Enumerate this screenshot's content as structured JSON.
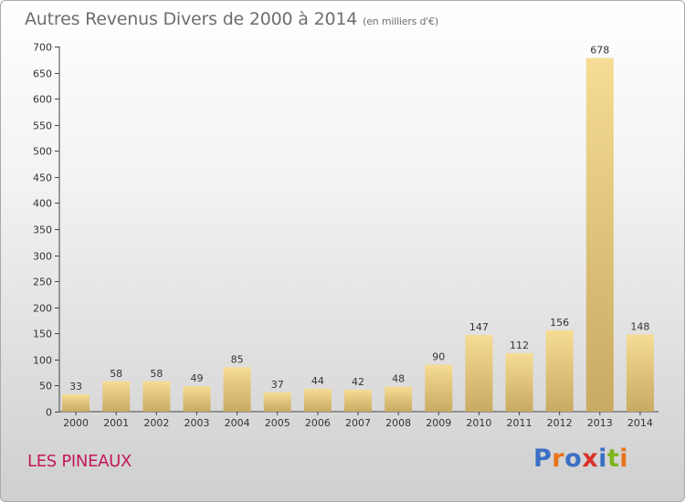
{
  "header": {
    "title": "Autres Revenus Divers de 2000 à 2014",
    "subtitle": "(en milliers d'€)"
  },
  "footer": {
    "commune": "LES PINEAUX",
    "logo_text": "Proxiti"
  },
  "colors": {
    "bar_light": "#f6dc94",
    "bar_dark": "#c9aa62",
    "commune_text": "#c2185b"
  },
  "chart_data": {
    "type": "bar",
    "title": "Autres Revenus Divers de 2000 à 2014",
    "subtitle": "(en milliers d'€)",
    "categories": [
      "2000",
      "2001",
      "2002",
      "2003",
      "2004",
      "2005",
      "2006",
      "2007",
      "2008",
      "2009",
      "2010",
      "2011",
      "2012",
      "2013",
      "2014"
    ],
    "values": [
      33,
      58,
      58,
      49,
      85,
      37,
      44,
      42,
      48,
      90,
      147,
      112,
      156,
      678,
      148
    ],
    "yticks": [
      0,
      50,
      100,
      150,
      200,
      250,
      300,
      350,
      400,
      450,
      500,
      550,
      600,
      650,
      700
    ],
    "ylim": [
      0,
      700
    ],
    "grid": false,
    "legend": "none"
  }
}
